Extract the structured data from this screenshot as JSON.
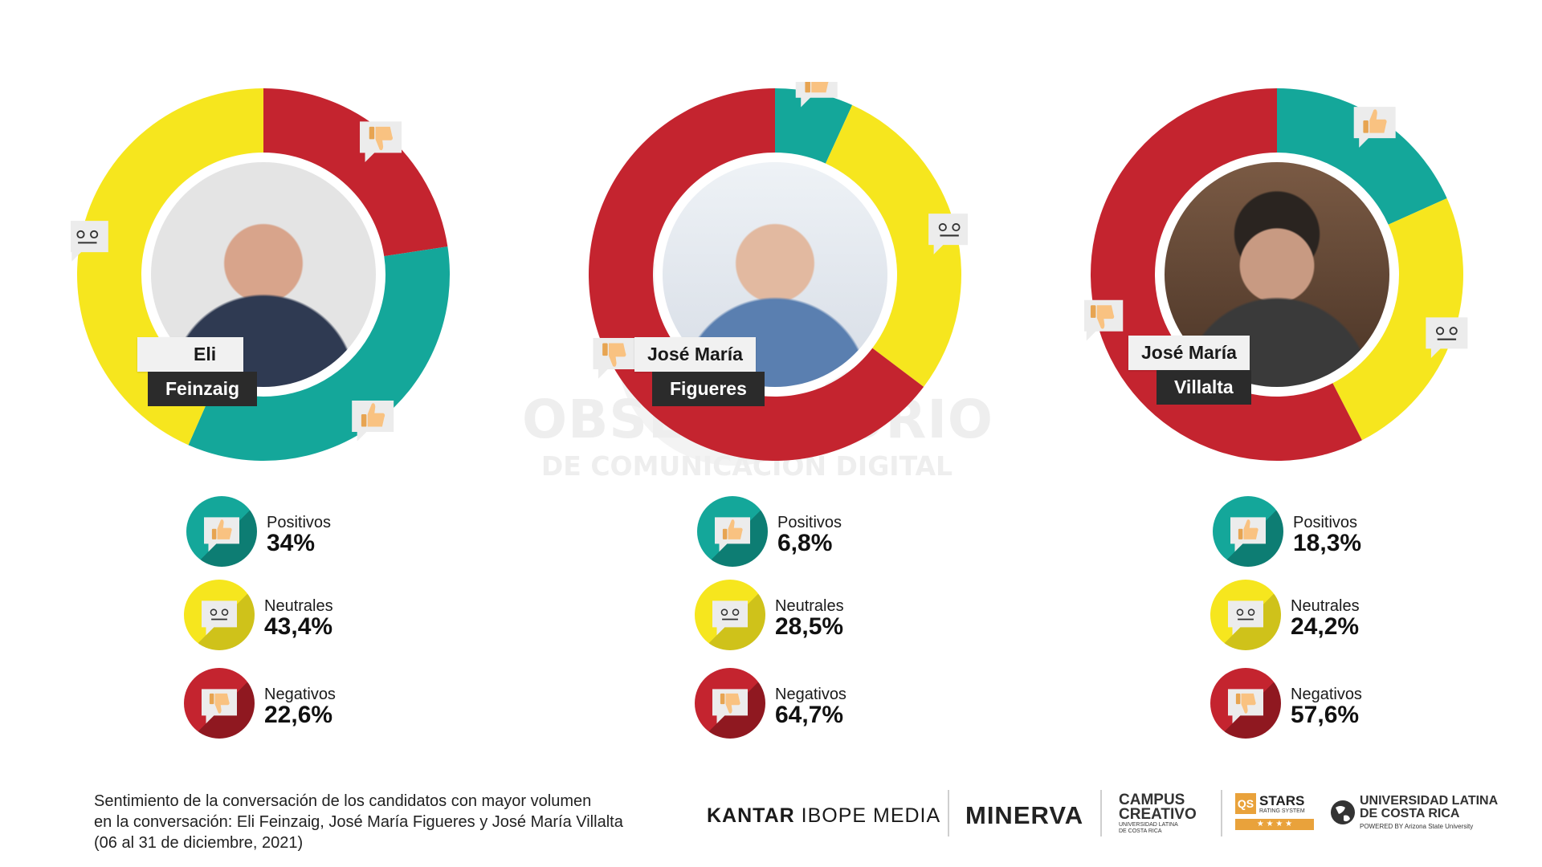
{
  "watermark": {
    "line1": "OBSERVATORIO",
    "line2": "DE COMUNICACIÓN DIGITAL"
  },
  "colors": {
    "positive": "#14a79a",
    "neutral": "#f6e61e",
    "negative": "#c4242f"
  },
  "chart_data": [
    {
      "type": "pie",
      "candidate_top": "Eli",
      "candidate_bottom": "Feinzaig",
      "categories": [
        "Positivos",
        "Neutrales",
        "Negativos"
      ],
      "values": [
        34,
        43.4,
        22.6
      ],
      "value_labels": [
        "34%",
        "43,4%",
        "22,6%"
      ],
      "slice_order": [
        "Negativos",
        "Positivos",
        "Neutrales"
      ]
    },
    {
      "type": "pie",
      "candidate_top": "José María",
      "candidate_bottom": "Figueres",
      "categories": [
        "Positivos",
        "Neutrales",
        "Negativos"
      ],
      "values": [
        6.8,
        28.5,
        64.7
      ],
      "value_labels": [
        "6,8%",
        "28,5%",
        "64,7%"
      ],
      "slice_order": [
        "Positivos",
        "Neutrales",
        "Negativos"
      ]
    },
    {
      "type": "pie",
      "candidate_top": "José María",
      "candidate_bottom": "Villalta",
      "categories": [
        "Positivos",
        "Neutrales",
        "Negativos"
      ],
      "values": [
        18.3,
        24.2,
        57.6
      ],
      "value_labels": [
        "18,3%",
        "24,2%",
        "57,6%"
      ],
      "slice_order": [
        "Positivos",
        "Neutrales",
        "Negativos"
      ]
    }
  ],
  "caption": [
    "Sentimiento de la conversación de los candidatos con mayor volumen",
    "en la conversación: Eli Feinzaig, José María Figueres y José María Villalta",
    "(06 al 31 de diciembre, 2021)"
  ],
  "logos": {
    "kantar_bold": "KANTAR",
    "kantar_rest": " IBOPE MEDIA",
    "minerva": "MINERVA",
    "campus_line1": "CAMPUS",
    "campus_line2": "CREATIVO",
    "campus_sub1": "UNIVERSIDAD LATINA",
    "campus_sub2": "DE COSTA RICA",
    "qs_badge": "QS",
    "qs_stars": "STARS",
    "qs_sub": "RATING SYSTEM",
    "qs_rating": "★ ★ ★ ★",
    "ulatina_line1": "UNIVERSIDAD LATINA",
    "ulatina_line2": "DE COSTA RICA",
    "ulatina_sub": "POWERED BY Arizona State University"
  }
}
